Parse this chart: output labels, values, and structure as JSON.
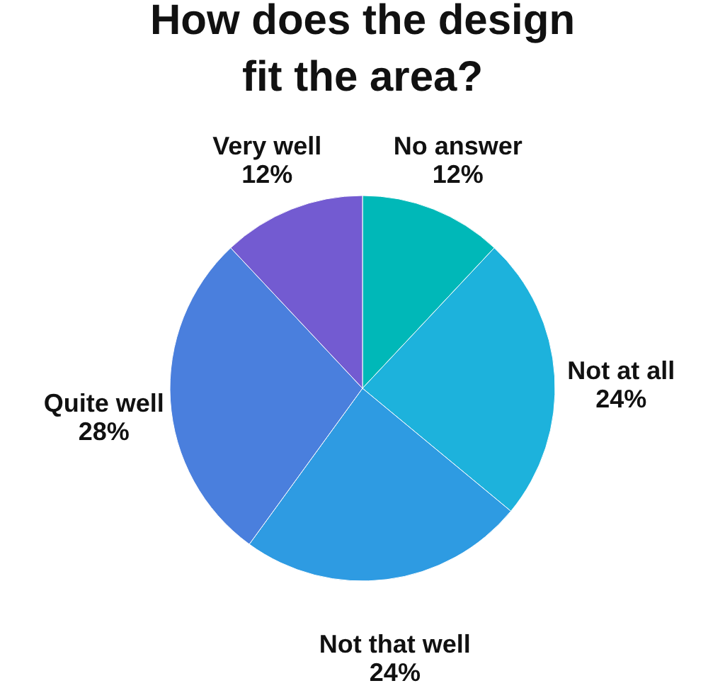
{
  "chart_data": {
    "type": "pie",
    "title": "How does the design fit the area?",
    "categories": [
      "No answer",
      "Not at all",
      "Not that well",
      "Quite well",
      "Very well"
    ],
    "values": [
      12,
      24,
      24,
      28,
      12
    ],
    "value_labels": [
      "12%",
      "24%",
      "24%",
      "28%",
      "12%"
    ],
    "colors": [
      "#00b8b8",
      "#1db2dc",
      "#2e9be2",
      "#4a7fdd",
      "#735bd1"
    ],
    "legend": false
  }
}
